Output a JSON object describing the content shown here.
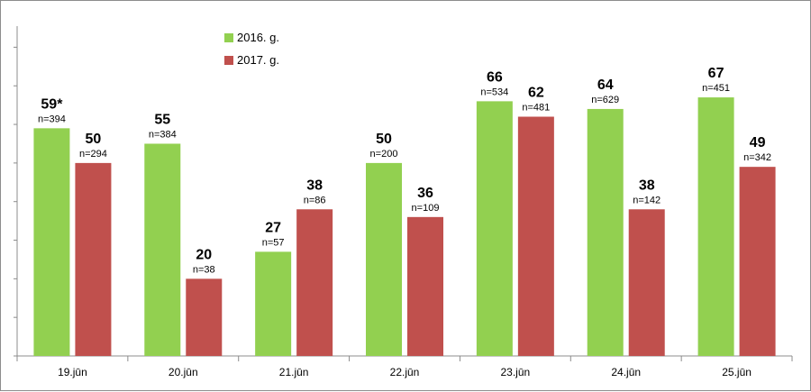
{
  "chart_data": {
    "type": "bar",
    "categories": [
      "19.jūn",
      "20.jūn",
      "21.jūn",
      "22.jūn",
      "23.jūn",
      "24.jūn",
      "25.jūn"
    ],
    "ylim": [
      0,
      85
    ],
    "grid": false,
    "legend_position": "top-center",
    "series": [
      {
        "name": "2016. g.",
        "color": "#92d050",
        "values": [
          59,
          55,
          27,
          50,
          66,
          64,
          67
        ],
        "labels": [
          "59*",
          "55",
          "27",
          "50",
          "66",
          "64",
          "67"
        ],
        "n_labels": [
          "n=394",
          "n=384",
          "n=57",
          "n=200",
          "n=534",
          "n=629",
          "n=451"
        ]
      },
      {
        "name": "2017. g.",
        "color": "#c0504d",
        "values": [
          50,
          20,
          38,
          36,
          62,
          38,
          49
        ],
        "labels": [
          "50",
          "20",
          "38",
          "36",
          "62",
          "38",
          "49"
        ],
        "n_labels": [
          "n=294",
          "n=38",
          "n=86",
          "n=109",
          "n=481",
          "n=142",
          "n=342"
        ]
      }
    ]
  }
}
